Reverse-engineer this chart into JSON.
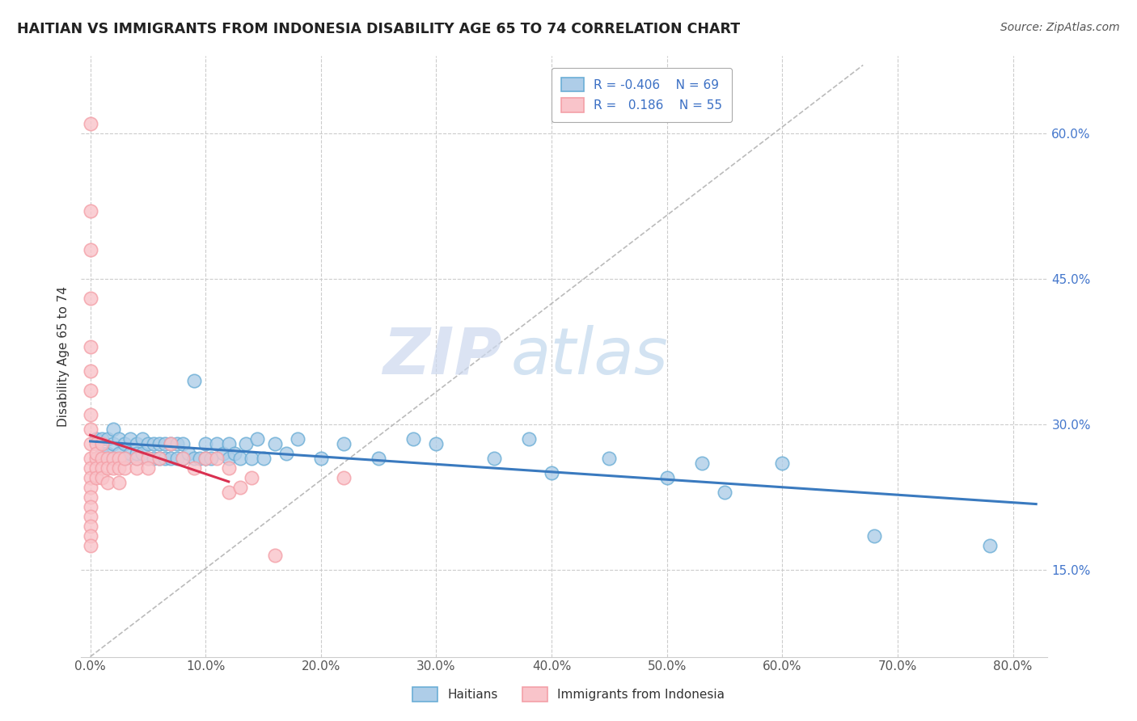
{
  "title": "HAITIAN VS IMMIGRANTS FROM INDONESIA DISABILITY AGE 65 TO 74 CORRELATION CHART",
  "source": "Source: ZipAtlas.com",
  "xlabel_vals": [
    0.0,
    0.1,
    0.2,
    0.3,
    0.4,
    0.5,
    0.6,
    0.7,
    0.8
  ],
  "ylabel_vals": [
    0.15,
    0.3,
    0.45,
    0.6
  ],
  "ylabel_label": "Disability Age 65 to 74",
  "xlim": [
    -0.008,
    0.83
  ],
  "ylim": [
    0.06,
    0.68
  ],
  "legend_blue_label": "Haitians",
  "legend_pink_label": "Immigrants from Indonesia",
  "legend_r_blue": "R = -0.406",
  "legend_n_blue": "N = 69",
  "legend_r_pink": "R =  0.186",
  "legend_n_pink": "N = 55",
  "blue_color": "#6baed6",
  "pink_color": "#f4a0a8",
  "blue_face": "#aecde8",
  "pink_face": "#f9c4ca",
  "blue_line_color": "#3a7abf",
  "pink_line_color": "#d93050",
  "diagonal_color": "#bbbbbb",
  "grid_color": "#cccccc",
  "watermark_zip": "ZIP",
  "watermark_atlas": "atlas",
  "blue_x": [
    0.005,
    0.01,
    0.01,
    0.015,
    0.015,
    0.02,
    0.02,
    0.02,
    0.025,
    0.025,
    0.03,
    0.03,
    0.03,
    0.035,
    0.035,
    0.04,
    0.04,
    0.04,
    0.045,
    0.045,
    0.05,
    0.05,
    0.055,
    0.055,
    0.06,
    0.06,
    0.065,
    0.065,
    0.07,
    0.07,
    0.075,
    0.075,
    0.08,
    0.08,
    0.085,
    0.09,
    0.09,
    0.095,
    0.1,
    0.1,
    0.105,
    0.11,
    0.115,
    0.12,
    0.12,
    0.125,
    0.13,
    0.135,
    0.14,
    0.145,
    0.15,
    0.16,
    0.17,
    0.18,
    0.2,
    0.22,
    0.25,
    0.28,
    0.3,
    0.35,
    0.38,
    0.4,
    0.45,
    0.5,
    0.53,
    0.55,
    0.6,
    0.68,
    0.78
  ],
  "blue_y": [
    0.285,
    0.27,
    0.285,
    0.27,
    0.285,
    0.265,
    0.28,
    0.295,
    0.27,
    0.285,
    0.265,
    0.28,
    0.265,
    0.27,
    0.285,
    0.265,
    0.28,
    0.27,
    0.27,
    0.285,
    0.265,
    0.28,
    0.265,
    0.28,
    0.265,
    0.28,
    0.265,
    0.28,
    0.265,
    0.28,
    0.265,
    0.28,
    0.265,
    0.28,
    0.27,
    0.265,
    0.345,
    0.265,
    0.265,
    0.28,
    0.265,
    0.28,
    0.27,
    0.265,
    0.28,
    0.27,
    0.265,
    0.28,
    0.265,
    0.285,
    0.265,
    0.28,
    0.27,
    0.285,
    0.265,
    0.28,
    0.265,
    0.285,
    0.28,
    0.265,
    0.285,
    0.25,
    0.265,
    0.245,
    0.26,
    0.23,
    0.26,
    0.185,
    0.175
  ],
  "pink_x": [
    0.0,
    0.0,
    0.0,
    0.0,
    0.0,
    0.0,
    0.0,
    0.0,
    0.0,
    0.0,
    0.0,
    0.0,
    0.0,
    0.0,
    0.0,
    0.0,
    0.0,
    0.0,
    0.0,
    0.0,
    0.005,
    0.005,
    0.005,
    0.005,
    0.005,
    0.01,
    0.01,
    0.01,
    0.01,
    0.015,
    0.015,
    0.015,
    0.02,
    0.02,
    0.025,
    0.025,
    0.025,
    0.03,
    0.03,
    0.04,
    0.04,
    0.05,
    0.05,
    0.06,
    0.07,
    0.08,
    0.09,
    0.1,
    0.11,
    0.12,
    0.12,
    0.13,
    0.14,
    0.16,
    0.22
  ],
  "pink_y": [
    0.61,
    0.52,
    0.48,
    0.43,
    0.38,
    0.355,
    0.335,
    0.31,
    0.295,
    0.28,
    0.265,
    0.255,
    0.245,
    0.235,
    0.225,
    0.215,
    0.205,
    0.195,
    0.185,
    0.175,
    0.265,
    0.28,
    0.255,
    0.27,
    0.245,
    0.265,
    0.28,
    0.255,
    0.245,
    0.265,
    0.24,
    0.255,
    0.265,
    0.255,
    0.265,
    0.255,
    0.24,
    0.255,
    0.265,
    0.255,
    0.265,
    0.265,
    0.255,
    0.265,
    0.28,
    0.265,
    0.255,
    0.265,
    0.265,
    0.255,
    0.23,
    0.235,
    0.245,
    0.165,
    0.245
  ]
}
